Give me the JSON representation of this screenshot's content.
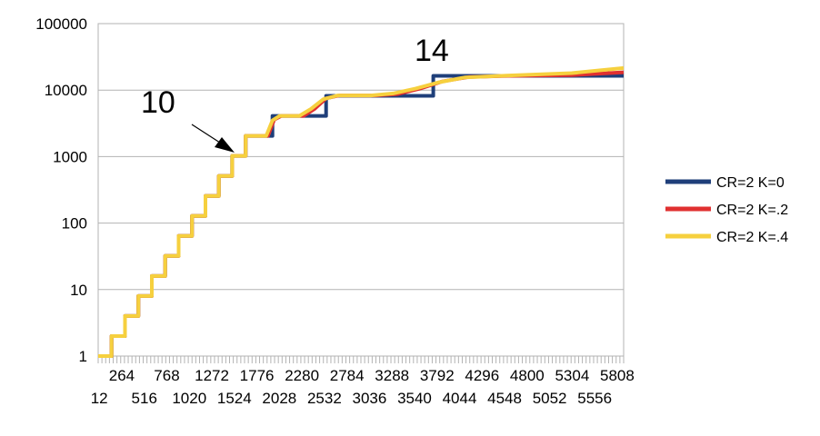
{
  "chart_data": {
    "type": "line",
    "y_scale": "log",
    "ylim": [
      1,
      100000
    ],
    "xlim": [
      0,
      5880
    ],
    "y_ticks": [
      "1",
      "10",
      "100",
      "1000",
      "10000",
      "100000"
    ],
    "x_ticks_row1": [
      "264",
      "768",
      "1272",
      "1776",
      "2280",
      "2784",
      "3288",
      "3792",
      "4296",
      "4800",
      "5304",
      "5808"
    ],
    "x_ticks_row2": [
      "12",
      "516",
      "1020",
      "1524",
      "2028",
      "2532",
      "3036",
      "3540",
      "4044",
      "4548",
      "5052",
      "5556"
    ],
    "grid": "horizontal",
    "legend_position": "right",
    "colors": {
      "k0": "#1f3f7a",
      "k2": "#e03030",
      "k4": "#f6d03e"
    },
    "series": [
      {
        "name": "CR=2 K=0",
        "points": [
          [
            0,
            1
          ],
          [
            150,
            1
          ],
          [
            150,
            2
          ],
          [
            300,
            2
          ],
          [
            300,
            4
          ],
          [
            450,
            4
          ],
          [
            450,
            8
          ],
          [
            600,
            8
          ],
          [
            600,
            16
          ],
          [
            750,
            16
          ],
          [
            750,
            32
          ],
          [
            900,
            32
          ],
          [
            900,
            64
          ],
          [
            1050,
            64
          ],
          [
            1050,
            128
          ],
          [
            1200,
            128
          ],
          [
            1200,
            256
          ],
          [
            1350,
            256
          ],
          [
            1350,
            512
          ],
          [
            1500,
            512
          ],
          [
            1500,
            1024
          ],
          [
            1650,
            1024
          ],
          [
            1650,
            2048
          ],
          [
            1950,
            2048
          ],
          [
            1950,
            4096
          ],
          [
            2550,
            4096
          ],
          [
            2550,
            8192
          ],
          [
            3750,
            8192
          ],
          [
            3750,
            16384
          ],
          [
            5880,
            16384
          ]
        ]
      },
      {
        "name": "CR=2 K=.2",
        "points": [
          [
            0,
            1
          ],
          [
            150,
            1
          ],
          [
            150,
            2
          ],
          [
            300,
            2
          ],
          [
            300,
            4
          ],
          [
            450,
            4
          ],
          [
            450,
            8
          ],
          [
            600,
            8
          ],
          [
            600,
            16
          ],
          [
            750,
            16
          ],
          [
            750,
            32
          ],
          [
            900,
            32
          ],
          [
            900,
            64
          ],
          [
            1050,
            64
          ],
          [
            1050,
            128
          ],
          [
            1200,
            128
          ],
          [
            1200,
            256
          ],
          [
            1350,
            256
          ],
          [
            1350,
            512
          ],
          [
            1500,
            512
          ],
          [
            1500,
            1024
          ],
          [
            1650,
            1024
          ],
          [
            1650,
            2048
          ],
          [
            1900,
            2048
          ],
          [
            1970,
            3600
          ],
          [
            2050,
            4096
          ],
          [
            2300,
            4096
          ],
          [
            2420,
            5200
          ],
          [
            2550,
            7500
          ],
          [
            2700,
            8300
          ],
          [
            3100,
            8300
          ],
          [
            3350,
            8700
          ],
          [
            3600,
            10500
          ],
          [
            3850,
            13500
          ],
          [
            4150,
            15800
          ],
          [
            4600,
            16400
          ],
          [
            5300,
            16800
          ],
          [
            5880,
            18500
          ]
        ]
      },
      {
        "name": "CR=2 K=.4",
        "points": [
          [
            0,
            1
          ],
          [
            150,
            1
          ],
          [
            150,
            2
          ],
          [
            300,
            2
          ],
          [
            300,
            4
          ],
          [
            450,
            4
          ],
          [
            450,
            8
          ],
          [
            600,
            8
          ],
          [
            600,
            16
          ],
          [
            750,
            16
          ],
          [
            750,
            32
          ],
          [
            900,
            32
          ],
          [
            900,
            64
          ],
          [
            1050,
            64
          ],
          [
            1050,
            128
          ],
          [
            1200,
            128
          ],
          [
            1200,
            256
          ],
          [
            1350,
            256
          ],
          [
            1350,
            512
          ],
          [
            1500,
            512
          ],
          [
            1500,
            1024
          ],
          [
            1650,
            1024
          ],
          [
            1650,
            2048
          ],
          [
            1880,
            2048
          ],
          [
            1950,
            3500
          ],
          [
            2030,
            4096
          ],
          [
            2250,
            4096
          ],
          [
            2380,
            5200
          ],
          [
            2520,
            7300
          ],
          [
            2680,
            8300
          ],
          [
            3050,
            8300
          ],
          [
            3300,
            8900
          ],
          [
            3550,
            10500
          ],
          [
            3800,
            13000
          ],
          [
            4100,
            15500
          ],
          [
            4600,
            16600
          ],
          [
            5300,
            18000
          ],
          [
            5880,
            21500
          ]
        ]
      }
    ],
    "annotations": [
      {
        "text": "10",
        "x": 1480,
        "y": 8000
      },
      {
        "text": "14",
        "x": 3500,
        "y": 35000
      }
    ]
  }
}
